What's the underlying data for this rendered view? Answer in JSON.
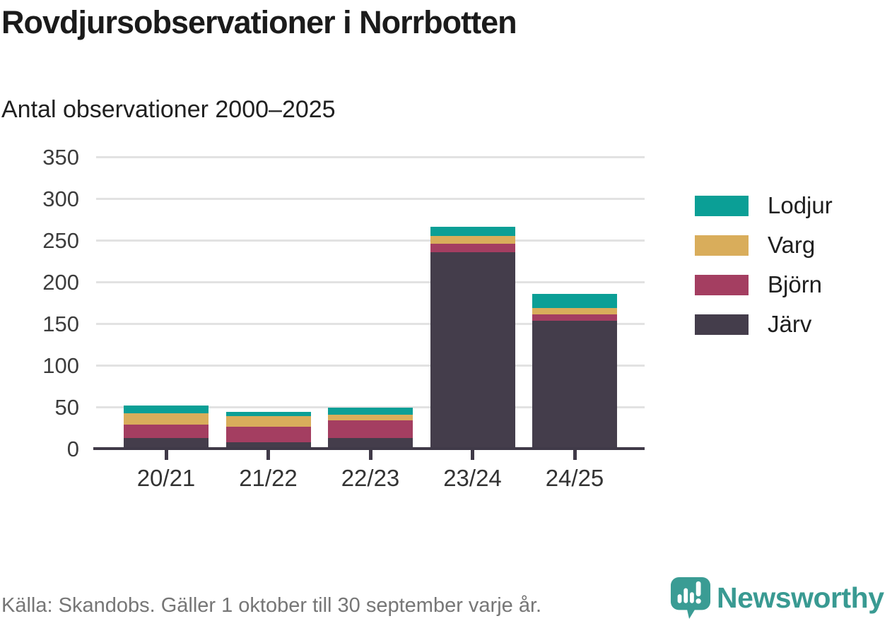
{
  "header": {
    "title": "Rovdjursobservationer i Norrbotten",
    "subtitle": "Antal observationer 2000–2025"
  },
  "chart_data": {
    "type": "bar",
    "stacked": true,
    "title": "Rovdjursobservationer i Norrbotten",
    "subtitle": "Antal observationer 2000–2025",
    "xlabel": "",
    "ylabel": "Antal observationer",
    "categories": [
      "20/21",
      "21/22",
      "22/23",
      "23/24",
      "24/25"
    ],
    "series": [
      {
        "name": "Järv",
        "color": "#443d4b",
        "values": [
          13,
          8,
          13,
          236,
          153
        ]
      },
      {
        "name": "Björn",
        "color": "#a43e61",
        "values": [
          16,
          18,
          21,
          10,
          8
        ]
      },
      {
        "name": "Varg",
        "color": "#d9ad5b",
        "values": [
          13,
          13,
          7,
          9,
          8
        ]
      },
      {
        "name": "Lodjur",
        "color": "#0b9f96",
        "values": [
          10,
          5,
          8,
          11,
          17
        ]
      }
    ],
    "stack_order_bottom_to_top": [
      "Järv",
      "Björn",
      "Varg",
      "Lodjur"
    ],
    "legend_order": [
      "Lodjur",
      "Varg",
      "Björn",
      "Järv"
    ],
    "legend_position": "right",
    "y_ticks": [
      0,
      50,
      100,
      150,
      200,
      250,
      300,
      350
    ],
    "ylim": [
      0,
      350
    ],
    "grid": "horizontal"
  },
  "footer": {
    "source": "Källa: Skandobs. Gäller 1 oktober till 30 september varje år.",
    "brand": "Newsworthy"
  },
  "colors": {
    "teal": "#0b9f96",
    "gold": "#d9ad5b",
    "maroon": "#a43e61",
    "dark_slate": "#443d4b",
    "gridline": "#e2e2e2",
    "axis_line": "#403a48",
    "axis_text": "#3d3d3d",
    "title_text": "#1b1b1b",
    "source_text": "#767676",
    "brand_teal": "#399a92"
  }
}
